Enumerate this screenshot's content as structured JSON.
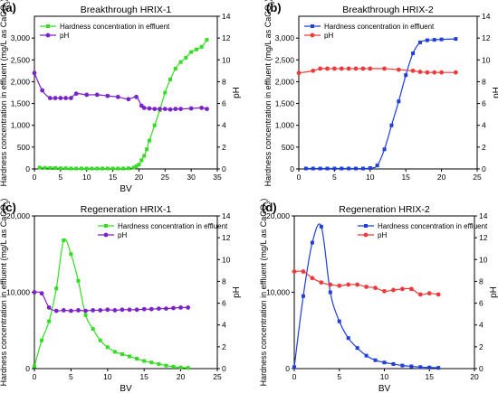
{
  "figure": {
    "panels_order": [
      "a",
      "b",
      "c",
      "d"
    ]
  },
  "chart_data": [
    {
      "panel": "a",
      "label": "(a)",
      "type": "line",
      "title": "Breakthrough HRIX-1",
      "xlabel": "BV",
      "ylabel_left": "Hardness concentration in effluent (mg/L as CaCO3)",
      "ylabel_right": "pH",
      "xlim": [
        0,
        35
      ],
      "ylim_left": [
        0,
        3500
      ],
      "ylim_right": [
        0,
        14
      ],
      "xticks": [
        0,
        5,
        10,
        15,
        20,
        25,
        30,
        35
      ],
      "yticks_left": [
        0,
        500,
        1000,
        1500,
        2000,
        2500,
        3000
      ],
      "ytick_labels_left": [
        "0",
        "500",
        "1,000",
        "1,500",
        "2,000",
        "2,500",
        "3,000"
      ],
      "yticks_right": [
        0,
        2,
        4,
        6,
        8,
        10,
        12,
        14
      ],
      "legend_position": "top-left",
      "series": [
        {
          "name": "Hardness concentration in effluent",
          "axis": "left",
          "color": "#33dd22",
          "marker": "square",
          "x": [
            1,
            2,
            3,
            4,
            5,
            6,
            7,
            8,
            9,
            10,
            11,
            12,
            13,
            14,
            15,
            16,
            17,
            18,
            19,
            19.5,
            20,
            20.5,
            21,
            21.5,
            22,
            23,
            24,
            25,
            26,
            27,
            28,
            29,
            30,
            31,
            32,
            33
          ],
          "y": [
            30,
            25,
            20,
            20,
            15,
            15,
            10,
            10,
            10,
            10,
            10,
            10,
            10,
            10,
            10,
            10,
            10,
            15,
            30,
            60,
            100,
            200,
            300,
            450,
            650,
            1000,
            1350,
            1750,
            2050,
            2300,
            2450,
            2550,
            2680,
            2740,
            2800,
            2960
          ]
        },
        {
          "name": "pH",
          "axis": "right",
          "color": "#7b22c8",
          "marker": "circle",
          "x": [
            0,
            1.5,
            3,
            4,
            5,
            6,
            7,
            8,
            10,
            12,
            14,
            16,
            18,
            19.5,
            20.5,
            21,
            22,
            23,
            24,
            25,
            26,
            27,
            28,
            30,
            32,
            33
          ],
          "y": [
            8.8,
            7.2,
            6.5,
            6.5,
            6.5,
            6.5,
            6.5,
            6.9,
            6.8,
            6.8,
            6.7,
            6.6,
            6.4,
            6.6,
            5.8,
            5.6,
            5.55,
            5.5,
            5.5,
            5.5,
            5.45,
            5.5,
            5.5,
            5.55,
            5.6,
            5.5
          ]
        }
      ]
    },
    {
      "panel": "b",
      "label": "(b)",
      "type": "line",
      "title": "Breakthrough HRIX-2",
      "xlabel": "",
      "ylabel_left": "Hardness concentration in effluent (mg/L as CaCO3)",
      "ylabel_right": "pH",
      "xlim": [
        0,
        25
      ],
      "ylim_left": [
        0,
        3500
      ],
      "ylim_right": [
        0,
        14
      ],
      "xticks": [
        0,
        5,
        10,
        15,
        20,
        25
      ],
      "yticks_left": [
        0,
        500,
        1000,
        1500,
        2000,
        2500,
        3000
      ],
      "ytick_labels_left": [
        "0",
        "500",
        "1,000",
        "1,500",
        "2,000",
        "2,500",
        "3,000"
      ],
      "yticks_right": [
        0,
        2,
        4,
        6,
        8,
        10,
        12,
        14
      ],
      "legend_position": "top-left",
      "series": [
        {
          "name": "Hardness concentration in effluent",
          "axis": "left",
          "color": "#1f3fd9",
          "marker": "square",
          "x": [
            1,
            2,
            3,
            4,
            5,
            6,
            7,
            8,
            9,
            10,
            11,
            12,
            13,
            14,
            15,
            16,
            17,
            18,
            19,
            20,
            22
          ],
          "y": [
            10,
            10,
            10,
            10,
            10,
            10,
            10,
            10,
            10,
            20,
            80,
            450,
            1000,
            1550,
            2150,
            2650,
            2900,
            2950,
            2960,
            2970,
            2980
          ]
        },
        {
          "name": "pH",
          "axis": "right",
          "color": "#ee3a3a",
          "marker": "circle",
          "x": [
            0,
            2,
            3,
            4,
            5,
            6,
            7,
            8,
            9,
            10,
            12,
            14,
            16,
            17,
            18,
            19,
            20,
            22
          ],
          "y": [
            8.8,
            9.0,
            9.2,
            9.2,
            9.2,
            9.2,
            9.2,
            9.2,
            9.2,
            9.2,
            9.2,
            9.1,
            9.0,
            8.9,
            8.85,
            8.85,
            8.85,
            8.85
          ]
        }
      ]
    },
    {
      "panel": "c",
      "label": "(c)",
      "type": "line",
      "title": "Regeneration HRIX-1",
      "xlabel": "BV",
      "ylabel_left": "Hardness concentration in effluent (mg/L as CaCO3)",
      "ylabel_right": "pH",
      "xlim": [
        0,
        25
      ],
      "ylim_left": [
        0,
        20000
      ],
      "ylim_right": [
        0,
        14
      ],
      "xticks": [
        0,
        5,
        10,
        15,
        20,
        25
      ],
      "yticks_left": [
        0,
        10000,
        20000
      ],
      "ytick_labels_left": [
        "0",
        "10,000",
        "20,000"
      ],
      "yticks_right": [
        0,
        2,
        4,
        6,
        8,
        10,
        12,
        14
      ],
      "legend_position": "top-right",
      "series": [
        {
          "name": "Hardness concentration in effluent",
          "axis": "left",
          "color": "#33dd22",
          "marker": "square",
          "x": [
            0,
            1,
            2,
            3,
            4,
            5,
            6,
            7,
            8,
            9,
            10,
            11,
            12,
            13,
            14,
            15,
            16,
            17,
            18,
            19,
            20,
            21
          ],
          "y": [
            300,
            3700,
            6200,
            10500,
            16800,
            15000,
            11500,
            7000,
            5200,
            3700,
            2800,
            2200,
            1900,
            1600,
            1300,
            1000,
            800,
            600,
            400,
            250,
            150,
            100
          ]
        },
        {
          "name": "pH",
          "axis": "right",
          "color": "#7b22c8",
          "marker": "circle",
          "x": [
            0,
            1,
            2,
            3,
            4,
            5,
            6,
            7,
            8,
            9,
            10,
            11,
            12,
            13,
            14,
            15,
            16,
            17,
            18,
            19,
            20,
            21
          ],
          "y": [
            7.0,
            6.9,
            5.6,
            5.3,
            5.35,
            5.3,
            5.35,
            5.3,
            5.35,
            5.35,
            5.4,
            5.35,
            5.4,
            5.4,
            5.4,
            5.45,
            5.45,
            5.5,
            5.5,
            5.55,
            5.6,
            5.6
          ]
        }
      ]
    },
    {
      "panel": "d",
      "label": "(d)",
      "type": "line",
      "title": "Regeneration HRIX-2",
      "xlabel": "BV",
      "ylabel_left": "Hardness concentration in effluent (mg/L as CaCO3)",
      "ylabel_right": "pH",
      "xlim": [
        0,
        20
      ],
      "ylim_left": [
        0,
        20000
      ],
      "ylim_right": [
        0,
        14
      ],
      "xticks": [
        0,
        5,
        10,
        15,
        20
      ],
      "yticks_left": [
        0,
        10000,
        20000
      ],
      "ytick_labels_left": [
        "0",
        "10,000",
        "20,000"
      ],
      "yticks_right": [
        0,
        2,
        4,
        6,
        8,
        10,
        12,
        14
      ],
      "legend_position": "top-right",
      "series": [
        {
          "name": "Hardness concentration in effluent",
          "axis": "left",
          "color": "#1f3fd9",
          "marker": "square",
          "x": [
            0,
            1,
            2,
            3,
            4,
            5,
            6,
            7,
            8,
            9,
            10,
            11,
            12,
            13,
            14,
            15,
            16
          ],
          "y": [
            200,
            9500,
            16500,
            18600,
            10000,
            6200,
            4000,
            2700,
            1700,
            1100,
            800,
            600,
            400,
            300,
            200,
            150,
            100
          ]
        },
        {
          "name": "pH",
          "axis": "right",
          "color": "#ee3a3a",
          "marker": "circle",
          "x": [
            0,
            1,
            2,
            3,
            4,
            5,
            6,
            7,
            8,
            9,
            10,
            11,
            12,
            13,
            14,
            15,
            16
          ],
          "y": [
            8.9,
            8.9,
            8.3,
            7.9,
            7.7,
            7.6,
            7.7,
            7.7,
            7.5,
            7.4,
            7.1,
            7.2,
            7.3,
            7.3,
            6.8,
            6.9,
            6.8
          ]
        }
      ]
    }
  ]
}
